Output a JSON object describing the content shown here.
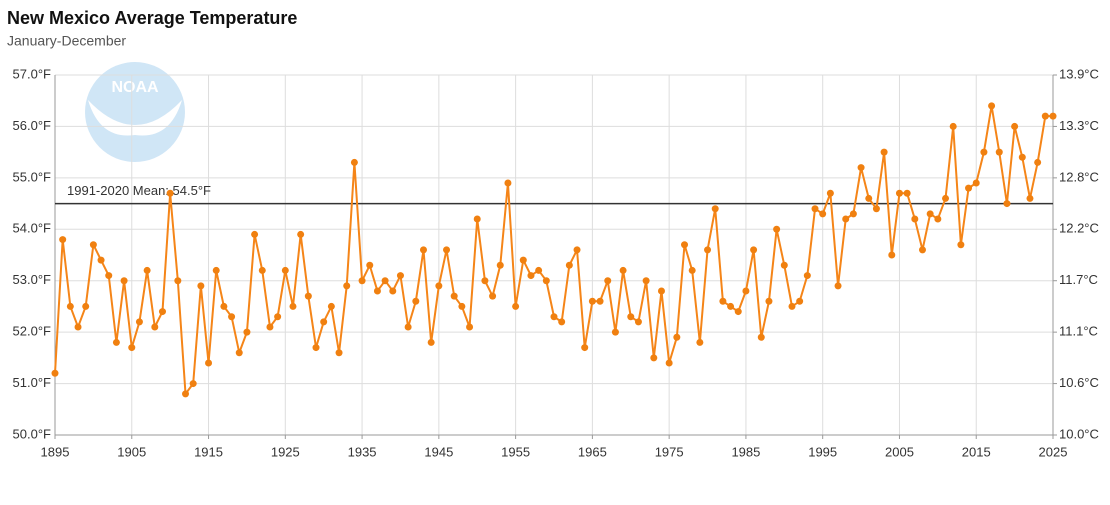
{
  "chart_data": {
    "type": "line",
    "title": "New Mexico Average Temperature",
    "subtitle": "January-December",
    "logo_text": "NOAA",
    "x": [
      1895,
      1896,
      1897,
      1898,
      1899,
      1900,
      1901,
      1902,
      1903,
      1904,
      1905,
      1906,
      1907,
      1908,
      1909,
      1910,
      1911,
      1912,
      1913,
      1914,
      1915,
      1916,
      1917,
      1918,
      1919,
      1920,
      1921,
      1922,
      1923,
      1924,
      1925,
      1926,
      1927,
      1928,
      1929,
      1930,
      1931,
      1932,
      1933,
      1934,
      1935,
      1936,
      1937,
      1938,
      1939,
      1940,
      1941,
      1942,
      1943,
      1944,
      1945,
      1946,
      1947,
      1948,
      1949,
      1950,
      1951,
      1952,
      1953,
      1954,
      1955,
      1956,
      1957,
      1958,
      1959,
      1960,
      1961,
      1962,
      1963,
      1964,
      1965,
      1966,
      1967,
      1968,
      1969,
      1970,
      1971,
      1972,
      1973,
      1974,
      1975,
      1976,
      1977,
      1978,
      1979,
      1980,
      1981,
      1982,
      1983,
      1984,
      1985,
      1986,
      1987,
      1988,
      1989,
      1990,
      1991,
      1992,
      1993,
      1994,
      1995,
      1996,
      1997,
      1998,
      1999,
      2000,
      2001,
      2002,
      2003,
      2004,
      2005,
      2006,
      2007,
      2008,
      2009,
      2010,
      2011,
      2012,
      2013,
      2014,
      2015,
      2016,
      2017,
      2018,
      2019,
      2020,
      2021,
      2022,
      2023,
      2024,
      2025
    ],
    "series": [
      {
        "color": "#f58518",
        "marker_color": "#f08010",
        "values": [
          51.2,
          53.8,
          52.5,
          52.1,
          52.5,
          53.7,
          53.4,
          53.1,
          51.8,
          53.0,
          51.7,
          52.2,
          53.2,
          52.1,
          52.4,
          54.7,
          53.0,
          50.8,
          51.0,
          52.9,
          51.4,
          53.2,
          52.5,
          52.3,
          51.6,
          52.0,
          53.9,
          53.2,
          52.1,
          52.3,
          53.2,
          52.5,
          53.9,
          52.7,
          51.7,
          52.2,
          52.5,
          51.6,
          52.9,
          55.3,
          53.0,
          53.3,
          52.8,
          53.0,
          52.8,
          53.1,
          52.1,
          52.6,
          53.6,
          51.8,
          52.9,
          53.6,
          52.7,
          52.5,
          52.1,
          54.2,
          53.0,
          52.7,
          53.3,
          54.9,
          52.5,
          53.4,
          53.1,
          53.2,
          53.0,
          52.3,
          52.2,
          53.3,
          53.6,
          51.7,
          52.6,
          52.6,
          53.0,
          52.0,
          53.2,
          52.3,
          52.2,
          53.0,
          51.5,
          52.8,
          51.4,
          51.9,
          53.7,
          53.2,
          51.8,
          53.6,
          54.4,
          52.6,
          52.5,
          52.4,
          52.8,
          53.6,
          51.9,
          52.6,
          54.0,
          53.3,
          52.5,
          52.6,
          53.1,
          54.4,
          54.3,
          54.7,
          52.9,
          54.2,
          54.3,
          55.2,
          54.6,
          54.4,
          55.5,
          53.5,
          54.7,
          54.7,
          54.2,
          53.6,
          54.3,
          54.2,
          54.6,
          56.0,
          53.7,
          54.8,
          54.9,
          55.5,
          56.4,
          55.5,
          54.5,
          56.0,
          55.4,
          54.6,
          55.3,
          56.2,
          56.2
        ]
      }
    ],
    "mean_line": {
      "value": 54.5,
      "label": "1991-2020 Mean: 54.5°F",
      "color": "#333333"
    },
    "xlim": [
      1895,
      2025
    ],
    "xticks": [
      1895,
      1905,
      1915,
      1925,
      1935,
      1945,
      1955,
      1965,
      1975,
      1985,
      1995,
      2005,
      2015,
      2025
    ],
    "ylim": [
      50,
      57
    ],
    "yticks": [
      {
        "value": 50,
        "label": "50.0°F"
      },
      {
        "value": 51,
        "label": "51.0°F"
      },
      {
        "value": 52,
        "label": "52.0°F"
      },
      {
        "value": 53,
        "label": "53.0°F"
      },
      {
        "value": 54,
        "label": "54.0°F"
      },
      {
        "value": 55,
        "label": "55.0°F"
      },
      {
        "value": 56,
        "label": "56.0°F"
      },
      {
        "value": 57,
        "label": "57.0°F"
      }
    ],
    "y2lim": [
      50,
      57
    ],
    "y2ticks": [
      {
        "value": 50,
        "label": "10.0°C"
      },
      {
        "value": 51,
        "label": "10.6°C"
      },
      {
        "value": 52,
        "label": "11.1°C"
      },
      {
        "value": 53,
        "label": "11.7°C"
      },
      {
        "value": 54,
        "label": "12.2°C"
      },
      {
        "value": 55,
        "label": "12.8°C"
      },
      {
        "value": 56,
        "label": "13.3°C"
      },
      {
        "value": 57,
        "label": "13.9°C"
      }
    ],
    "grid": true
  }
}
